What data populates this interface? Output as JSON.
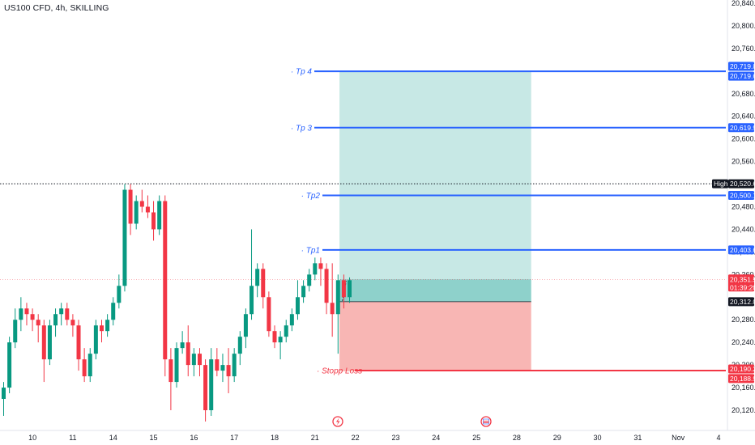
{
  "header": {
    "title": "US100 CFD, 4h, SKILLING"
  },
  "colors": {
    "up": "#089981",
    "down": "#f23645",
    "level": "#2962ff",
    "stop": "#f23645",
    "target_zone": "#b2dfdb",
    "stop_zone": "#f7a9a7",
    "text": "#131722",
    "dark_tag": "#131722"
  },
  "chart_data": {
    "type": "candlestick",
    "symbol": "US100 CFD",
    "timeframe": "4h",
    "ylim": [
      20100,
      20850
    ],
    "y_ticks": [
      20120,
      20160,
      20200,
      20240,
      20280,
      20320,
      20360,
      20400,
      20440,
      20480,
      20520,
      20560,
      20600,
      20640,
      20680,
      20720,
      20760,
      20800,
      20840
    ],
    "y_tick_labels": [
      "20,120.0",
      "20,160.0",
      "20,200.0",
      "20,240.0",
      "20,280.0",
      "",
      "20,360.0",
      "20,400.0",
      "20,440.0",
      "20,480.0",
      "",
      "20,560.0",
      "20,600.0",
      "20,640.0",
      "20,680.0",
      "",
      "20,760.0",
      "20,800.0",
      "20,840.0"
    ],
    "x_labels": [
      {
        "bar": 5,
        "text": "10"
      },
      {
        "bar": 12,
        "text": "11"
      },
      {
        "bar": 19,
        "text": "14"
      },
      {
        "bar": 26,
        "text": "15"
      },
      {
        "bar": 33,
        "text": "16"
      },
      {
        "bar": 40,
        "text": "17"
      },
      {
        "bar": 47,
        "text": "18"
      },
      {
        "bar": 54,
        "text": "21"
      },
      {
        "bar": 61,
        "text": "22"
      },
      {
        "bar": 68,
        "text": "23"
      },
      {
        "bar": 75,
        "text": "24"
      },
      {
        "bar": 82,
        "text": "25"
      },
      {
        "bar": 89,
        "text": "28"
      },
      {
        "bar": 96,
        "text": "29"
      },
      {
        "bar": 103,
        "text": "30"
      },
      {
        "bar": 110,
        "text": "31"
      },
      {
        "bar": 117,
        "text": "Nov"
      },
      {
        "bar": 124,
        "text": "4"
      }
    ],
    "candles": [
      [
        20140,
        20170,
        20110,
        20160
      ],
      [
        20160,
        20250,
        20150,
        20240
      ],
      [
        20240,
        20300,
        20230,
        20280
      ],
      [
        20280,
        20320,
        20260,
        20300
      ],
      [
        20300,
        20310,
        20270,
        20290
      ],
      [
        20290,
        20300,
        20260,
        20280
      ],
      [
        20280,
        20290,
        20240,
        20270
      ],
      [
        20270,
        20280,
        20170,
        20210
      ],
      [
        20210,
        20280,
        20200,
        20270
      ],
      [
        20270,
        20300,
        20250,
        20290
      ],
      [
        20290,
        20310,
        20270,
        20300
      ],
      [
        20300,
        20310,
        20270,
        20280
      ],
      [
        20280,
        20290,
        20250,
        20270
      ],
      [
        20270,
        20280,
        20190,
        20210
      ],
      [
        20210,
        20230,
        20170,
        20180
      ],
      [
        20180,
        20230,
        20170,
        20220
      ],
      [
        20220,
        20280,
        20210,
        20270
      ],
      [
        20270,
        20280,
        20240,
        20260
      ],
      [
        20260,
        20290,
        20250,
        20280
      ],
      [
        20280,
        20320,
        20270,
        20310
      ],
      [
        20310,
        20360,
        20300,
        20340
      ],
      [
        20340,
        20520,
        20330,
        20510
      ],
      [
        20510,
        20520,
        20430,
        20450
      ],
      [
        20450,
        20500,
        20440,
        20490
      ],
      [
        20490,
        20510,
        20470,
        20480
      ],
      [
        20480,
        20500,
        20460,
        20470
      ],
      [
        20470,
        20490,
        20420,
        20440
      ],
      [
        20440,
        20500,
        20430,
        20490
      ],
      [
        20490,
        20500,
        20180,
        20210
      ],
      [
        20210,
        20230,
        20120,
        20170
      ],
      [
        20170,
        20240,
        20160,
        20230
      ],
      [
        20230,
        20260,
        20220,
        20240
      ],
      [
        20240,
        20270,
        20180,
        20200
      ],
      [
        20200,
        20230,
        20180,
        20220
      ],
      [
        20220,
        20230,
        20180,
        20200
      ],
      [
        20200,
        20210,
        20100,
        20120
      ],
      [
        20120,
        20230,
        20110,
        20210
      ],
      [
        20210,
        20230,
        20180,
        20190
      ],
      [
        20190,
        20220,
        20170,
        20200
      ],
      [
        20200,
        20230,
        20150,
        20180
      ],
      [
        20180,
        20230,
        20170,
        20220
      ],
      [
        20220,
        20260,
        20200,
        20250
      ],
      [
        20250,
        20300,
        20230,
        20290
      ],
      [
        20290,
        20440,
        20280,
        20340
      ],
      [
        20340,
        20380,
        20320,
        20370
      ],
      [
        20370,
        20380,
        20300,
        20320
      ],
      [
        20320,
        20330,
        20250,
        20260
      ],
      [
        20260,
        20270,
        20230,
        20240
      ],
      [
        20240,
        20260,
        20210,
        20250
      ],
      [
        20250,
        20280,
        20240,
        20270
      ],
      [
        20270,
        20300,
        20260,
        20290
      ],
      [
        20290,
        20350,
        20280,
        20320
      ],
      [
        20320,
        20350,
        20310,
        20340
      ],
      [
        20340,
        20370,
        20330,
        20360
      ],
      [
        20360,
        20390,
        20350,
        20380
      ],
      [
        20380,
        20390,
        20340,
        20370
      ],
      [
        20370,
        20380,
        20290,
        20310
      ],
      [
        20310,
        20380,
        20250,
        20290
      ],
      [
        20290,
        20360,
        20220,
        20350
      ],
      [
        20350,
        20360,
        20300,
        20320
      ],
      [
        20320,
        20355,
        20310,
        20350
      ]
    ],
    "current_price": 20351.5,
    "high_marker": {
      "label": "High",
      "price": 20520.6,
      "text": "20,520.6"
    },
    "levels": [
      {
        "label": "Tp 4",
        "price": 20719.6,
        "text": "20,719.6"
      },
      {
        "label": "Tp 3",
        "price": 20619.9,
        "text": "20,619.9"
      },
      {
        "label": "Tp2",
        "price": 20500.1,
        "text": "20,500.1"
      },
      {
        "label": "Tp1",
        "price": 20403.6,
        "text": "20,403.6"
      }
    ],
    "stop_level": {
      "label": "Stopp Loss",
      "price": 20190.2,
      "text": "20,190.2"
    },
    "position": {
      "entry": 20312.0,
      "entry_text": "20,312.0",
      "target": 20719.8,
      "target_text": "20,719.8",
      "stop": 20188.9,
      "stop_text": "20,188.9",
      "start_bar": 58.6,
      "end_bar": 91.5
    },
    "price_tag": {
      "price": 20351.5,
      "text": "20,351.5",
      "countdown": "01:39:28"
    }
  }
}
